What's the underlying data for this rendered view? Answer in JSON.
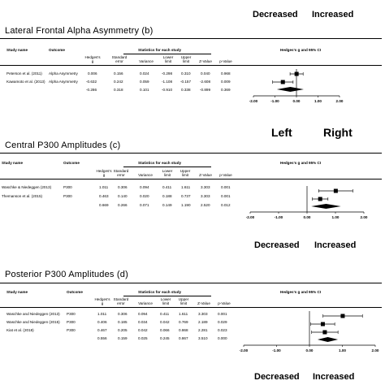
{
  "top_labels": {
    "decreased": "Decreased",
    "increased": "Increased"
  },
  "columns": {
    "study_name": "Study name",
    "outcome": "Outcome",
    "stats_header": "Statistics for each study",
    "forest_header": "Hedges's g and 95% CI",
    "hedges_g": [
      "Hedges's",
      "g"
    ],
    "std_err": [
      "Standard",
      "error"
    ],
    "variance": "Variance",
    "lower": [
      "Lower",
      "limit"
    ],
    "upper": [
      "Upper",
      "limit"
    ],
    "z": "Z-Value",
    "p": "p-Value"
  },
  "panels": [
    {
      "title": "Lateral Frontal Alpha Asymmetry (b)",
      "studies": [
        {
          "name": "Peterson et al. (2011)",
          "outcome": "Alpha Asymmetry",
          "g": "0.006",
          "se": "0.156",
          "var": "0.024",
          "lo": "-0.298",
          "hi": "0.310",
          "z": "0.040",
          "p": "0.968"
        },
        {
          "name": "Kawamoto et al. (2013)",
          "outcome": "Alpha Asymmetry",
          "g": "-0.632",
          "se": "0.242",
          "var": "0.059",
          "lo": "-1.108",
          "hi": "-0.157",
          "z": "-2.608",
          "p": "0.009"
        },
        {
          "name": "",
          "outcome": "",
          "g": "-0.286",
          "se": "0.318",
          "var": "0.101",
          "lo": "-0.910",
          "hi": "0.338",
          "z": "-0.899",
          "p": "0.369"
        }
      ],
      "axis_ticks": [
        "-2.00",
        "-1.00",
        "0.00",
        "1.00",
        "2.00"
      ],
      "below_labels": {
        "left": "Left",
        "right": "Right"
      }
    },
    {
      "title": "Central P300 Amplitudes (c)",
      "studies": [
        {
          "name": "Waschke & Niedeggen (2013)",
          "outcome": "P300",
          "g": "1.011",
          "se": "0.306",
          "var": "0.094",
          "lo": "0.411",
          "hi": "1.611",
          "z": "3.303",
          "p": "0.001"
        },
        {
          "name": "Themanson et al. (2015)",
          "outcome": "P300",
          "g": "0.463",
          "se": "0.140",
          "var": "0.020",
          "lo": "0.188",
          "hi": "0.737",
          "z": "3.303",
          "p": "0.001"
        },
        {
          "name": "",
          "outcome": "",
          "g": "0.669",
          "se": "0.266",
          "var": "0.071",
          "lo": "0.149",
          "hi": "1.190",
          "z": "2.520",
          "p": "0.012"
        }
      ],
      "axis_ticks": [
        "-2.00",
        "-1.00",
        "0.00",
        "1.00",
        "2.00"
      ],
      "below_labels": {
        "left": "Decreased",
        "right": "Increased"
      }
    },
    {
      "title": "Posterior P300 Amplitudes (d)",
      "studies": [
        {
          "name": "Waschke and Niedeggen (2013)",
          "outcome": "P300",
          "g": "1.011",
          "se": "0.306",
          "var": "0.094",
          "lo": "0.411",
          "hi": "1.611",
          "z": "3.303",
          "p": "0.001"
        },
        {
          "name": "Waschke and Niedeggen (2015)",
          "outcome": "P300",
          "g": "0.406",
          "se": "0.185",
          "var": "0.034",
          "lo": "0.042",
          "hi": "0.769",
          "z": "2.189",
          "p": "0.029"
        },
        {
          "name": "Kiat et al. (2018)",
          "outcome": "P300",
          "g": "0.467",
          "se": "0.205",
          "var": "0.042",
          "lo": "0.066",
          "hi": "0.868",
          "z": "2.281",
          "p": "0.023"
        },
        {
          "name": "",
          "outcome": "",
          "g": "0.556",
          "se": "0.159",
          "var": "0.025",
          "lo": "0.245",
          "hi": "0.867",
          "z": "3.510",
          "p": "0.000"
        }
      ],
      "axis_ticks": [
        "-2.00",
        "-1.00",
        "0.00",
        "1.00",
        "2.00"
      ],
      "below_labels": {
        "left": "Decreased",
        "right": "Increased"
      }
    }
  ],
  "chart_data": [
    {
      "type": "forest",
      "title": "Lateral Frontal Alpha Asymmetry (b)",
      "xlim": [
        -2,
        2
      ],
      "studies": [
        {
          "name": "Peterson et al. (2011)",
          "g": 0.006,
          "lower": -0.298,
          "upper": 0.31
        },
        {
          "name": "Kawamoto et al. (2013)",
          "g": -0.632,
          "lower": -1.108,
          "upper": -0.157
        }
      ],
      "summary": {
        "g": -0.286,
        "lower": -0.91,
        "upper": 0.338
      }
    },
    {
      "type": "forest",
      "title": "Central P300 Amplitudes (c)",
      "xlim": [
        -2,
        2
      ],
      "studies": [
        {
          "name": "Waschke & Niedeggen (2013)",
          "g": 1.011,
          "lower": 0.411,
          "upper": 1.611
        },
        {
          "name": "Themanson et al. (2015)",
          "g": 0.463,
          "lower": 0.188,
          "upper": 0.737
        }
      ],
      "summary": {
        "g": 0.669,
        "lower": 0.149,
        "upper": 1.19
      }
    },
    {
      "type": "forest",
      "title": "Posterior P300 Amplitudes (d)",
      "xlim": [
        -2,
        2
      ],
      "studies": [
        {
          "name": "Waschke and Niedeggen (2013)",
          "g": 1.011,
          "lower": 0.411,
          "upper": 1.611
        },
        {
          "name": "Waschke and Niedeggen (2015)",
          "g": 0.406,
          "lower": 0.042,
          "upper": 0.769
        },
        {
          "name": "Kiat et al. (2018)",
          "g": 0.467,
          "lower": 0.066,
          "upper": 0.868
        }
      ],
      "summary": {
        "g": 0.556,
        "lower": 0.245,
        "upper": 0.867
      }
    }
  ]
}
